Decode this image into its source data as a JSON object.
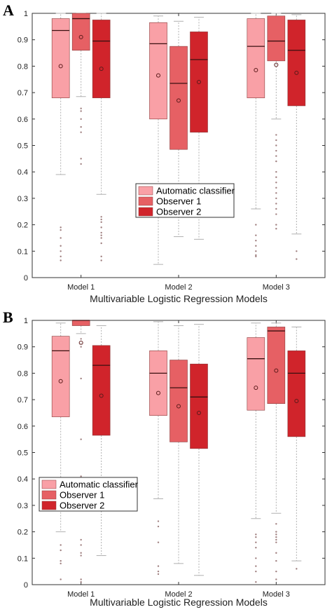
{
  "colors": {
    "automatic": "#f9a0a6",
    "observer1": "#e66064",
    "observer2": "#d0242b",
    "whisker": "#b0b0b0",
    "outlier": "#a08080"
  },
  "chart_data": [
    {
      "panel": "A",
      "type": "box",
      "xlabel": "Multivariable Logistic Regression Models",
      "ylabel": "",
      "ylim": [
        0,
        1
      ],
      "yticks": [
        "0",
        "0.1",
        "0.2",
        "0.3",
        "0.4",
        "0.5",
        "0.6",
        "0.7",
        "0.8",
        "0.9",
        "1"
      ],
      "categories": [
        "Model 1",
        "Model 2",
        "Model 3"
      ],
      "legend": {
        "placement": "center",
        "entries": [
          "Automatic classifier",
          "Observer 1",
          "Observer 2"
        ]
      },
      "series": [
        {
          "name": "Automatic classifier",
          "color_key": "automatic",
          "boxes": [
            {
              "min": 0.39,
              "q1": 0.68,
              "median": 0.935,
              "q3": 0.98,
              "max": 1.0,
              "mean": 0.8,
              "outliers": [
                0.19,
                0.18,
                0.15,
                0.12,
                0.1,
                0.08,
                0.065
              ]
            },
            {
              "min": 0.05,
              "q1": 0.6,
              "median": 0.885,
              "q3": 0.965,
              "max": 0.99,
              "mean": 0.765,
              "outliers": []
            },
            {
              "min": 0.26,
              "q1": 0.68,
              "median": 0.875,
              "q3": 0.98,
              "max": 1.0,
              "mean": 0.785,
              "outliers": [
                0.2,
                0.16,
                0.14,
                0.12,
                0.1,
                0.085,
                0.08
              ]
            }
          ]
        },
        {
          "name": "Observer 1",
          "color_key": "observer1",
          "boxes": [
            {
              "min": 0.685,
              "q1": 0.86,
              "median": 0.98,
              "q3": 1.0,
              "max": 1.0,
              "mean": 0.91,
              "outliers": [
                0.64,
                0.63,
                0.6,
                0.57,
                0.55,
                0.45,
                0.43
              ]
            },
            {
              "min": 0.155,
              "q1": 0.485,
              "median": 0.735,
              "q3": 0.875,
              "max": 0.97,
              "mean": 0.67,
              "outliers": []
            },
            {
              "min": 0.6,
              "q1": 0.82,
              "median": 0.895,
              "q3": 0.99,
              "max": 1.0,
              "mean": 0.805,
              "outliers": [
                0.54,
                0.52,
                0.5,
                0.48,
                0.46,
                0.44,
                0.4,
                0.38,
                0.36,
                0.34,
                0.32,
                0.3,
                0.28,
                0.26,
                0.24,
                0.2,
                0.185
              ]
            }
          ]
        },
        {
          "name": "Observer 2",
          "color_key": "observer2",
          "boxes": [
            {
              "min": 0.315,
              "q1": 0.68,
              "median": 0.895,
              "q3": 0.975,
              "max": 1.0,
              "mean": 0.79,
              "outliers": [
                0.23,
                0.22,
                0.21,
                0.19,
                0.17,
                0.16,
                0.15,
                0.13,
                0.08,
                0.065
              ]
            },
            {
              "min": 0.145,
              "q1": 0.55,
              "median": 0.825,
              "q3": 0.93,
              "max": 0.985,
              "mean": 0.74,
              "outliers": []
            },
            {
              "min": 0.165,
              "q1": 0.65,
              "median": 0.86,
              "q3": 0.975,
              "max": 0.995,
              "mean": 0.775,
              "outliers": [
                0.1,
                0.07
              ]
            }
          ]
        }
      ]
    },
    {
      "panel": "B",
      "type": "box",
      "xlabel": "Multivariable Logistic Regression Models",
      "ylabel": "",
      "ylim": [
        0,
        1
      ],
      "yticks": [
        "0",
        "0.1",
        "0.2",
        "0.3",
        "0.4",
        "0.5",
        "0.6",
        "0.7",
        "0.8",
        "0.9",
        "1"
      ],
      "categories": [
        "Model 1",
        "Model 2",
        "Model 3"
      ],
      "legend": {
        "placement": "lower-left",
        "entries": [
          "Automatic classifier",
          "Observer 1",
          "Observer 2"
        ]
      },
      "series": [
        {
          "name": "Automatic classifier",
          "color_key": "automatic",
          "boxes": [
            {
              "min": 0.2,
              "q1": 0.635,
              "median": 0.885,
              "q3": 0.94,
              "max": 0.99,
              "mean": 0.77,
              "outliers": [
                0.15,
                0.13,
                0.09,
                0.08,
                0.02
              ]
            },
            {
              "min": 0.325,
              "q1": 0.64,
              "median": 0.8,
              "q3": 0.885,
              "max": 0.995,
              "mean": 0.725,
              "outliers": [
                0.24,
                0.22,
                0.16,
                0.07,
                0.05,
                0.04
              ]
            },
            {
              "min": 0.25,
              "q1": 0.66,
              "median": 0.855,
              "q3": 0.935,
              "max": 0.99,
              "mean": 0.745,
              "outliers": [
                0.19,
                0.18,
                0.16,
                0.14,
                0.1,
                0.07,
                0.05,
                0.01
              ]
            }
          ]
        },
        {
          "name": "Observer 1",
          "color_key": "observer1",
          "boxes": [
            {
              "min": 0.95,
              "q1": 0.98,
              "median": 1.0,
              "q3": 1.0,
              "max": 1.0,
              "mean": 0.915,
              "outliers": [
                0.93,
                0.91,
                0.9,
                0.78,
                0.55,
                0.41,
                0.17,
                0.15,
                0.12,
                0.11,
                0.02,
                0.01
              ]
            },
            {
              "min": 0.08,
              "q1": 0.54,
              "median": 0.745,
              "q3": 0.85,
              "max": 0.98,
              "mean": 0.675,
              "outliers": []
            },
            {
              "min": 0.27,
              "q1": 0.685,
              "median": 0.96,
              "q3": 0.975,
              "max": 0.99,
              "mean": 0.81,
              "outliers": [
                0.23,
                0.2,
                0.19,
                0.18,
                0.17,
                0.16,
                0.12,
                0.09,
                0.05,
                0.02
              ]
            }
          ]
        },
        {
          "name": "Observer 2",
          "color_key": "observer2",
          "boxes": [
            {
              "min": 0.11,
              "q1": 0.565,
              "median": 0.83,
              "q3": 0.905,
              "max": 0.98,
              "mean": 0.715,
              "outliers": []
            },
            {
              "min": 0.035,
              "q1": 0.515,
              "median": 0.71,
              "q3": 0.835,
              "max": 0.985,
              "mean": 0.65,
              "outliers": []
            },
            {
              "min": 0.09,
              "q1": 0.56,
              "median": 0.8,
              "q3": 0.885,
              "max": 0.975,
              "mean": 0.695,
              "outliers": [
                0.06
              ]
            }
          ]
        }
      ]
    }
  ]
}
